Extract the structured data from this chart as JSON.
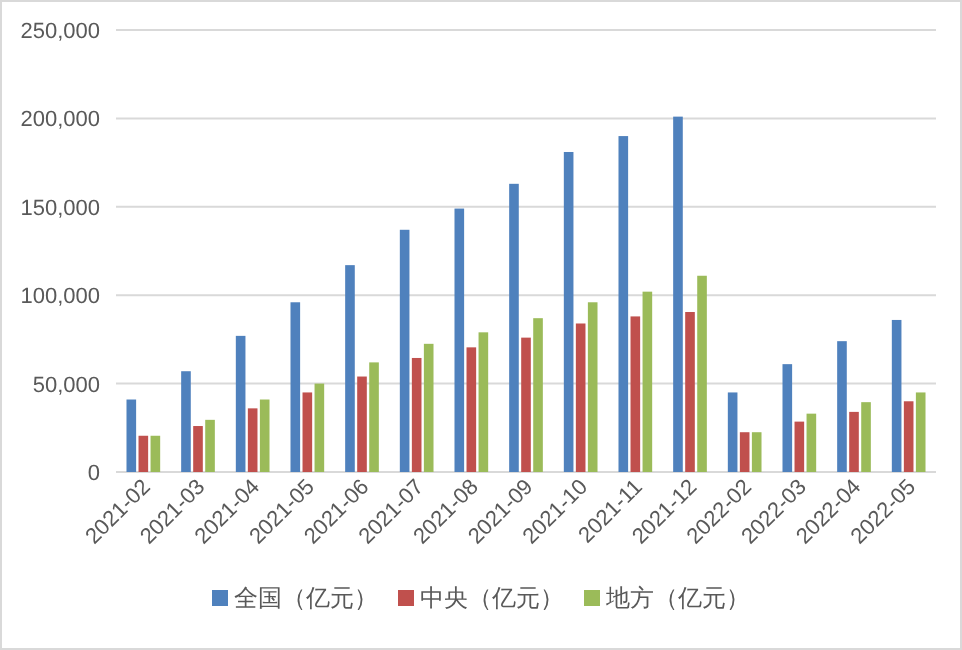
{
  "chart_data": {
    "type": "bar",
    "categories": [
      "2021-02",
      "2021-03",
      "2021-04",
      "2021-05",
      "2021-06",
      "2021-07",
      "2021-08",
      "2021-09",
      "2021-10",
      "2021-11",
      "2021-12",
      "2022-02",
      "2022-03",
      "2022-04",
      "2022-05"
    ],
    "series": [
      {
        "name": "全国（亿元）",
        "color": "#4f81bd",
        "values": [
          41000,
          57000,
          77000,
          96000,
          117000,
          137000,
          149000,
          163000,
          181000,
          190000,
          201000,
          45000,
          61000,
          74000,
          86000
        ]
      },
      {
        "name": "中央（亿元）",
        "color": "#c0504d",
        "values": [
          20500,
          26000,
          36000,
          45000,
          54000,
          64500,
          70500,
          76000,
          84000,
          88000,
          90500,
          22500,
          28500,
          34000,
          40000
        ]
      },
      {
        "name": "地方（亿元）",
        "color": "#9bbb59",
        "values": [
          20500,
          29500,
          41000,
          50000,
          62000,
          72500,
          79000,
          87000,
          96000,
          102000,
          111000,
          22500,
          33000,
          39500,
          45000
        ]
      }
    ],
    "ylim": [
      0,
      250000
    ],
    "yticks": [
      0,
      {
        "value": 50000,
        "label": "50,000"
      },
      {
        "value": 100000,
        "label": "100,000"
      },
      {
        "value": 150000,
        "label": "150,000"
      },
      {
        "value": 200000,
        "label": "200,000"
      },
      {
        "value": 250000,
        "label": "250,000"
      }
    ],
    "grid": "y",
    "legend": "bottom"
  }
}
